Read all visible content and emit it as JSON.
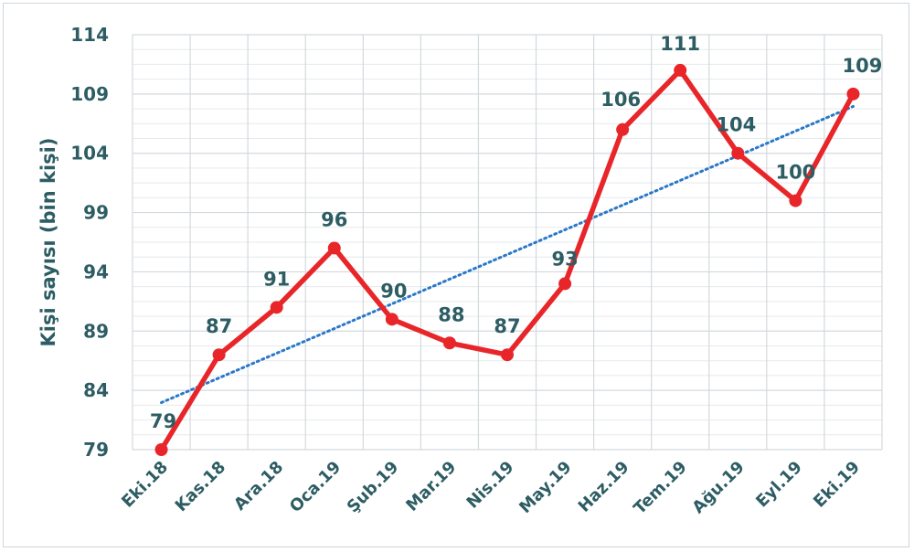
{
  "chart_data": {
    "type": "line",
    "title": "",
    "xlabel": "",
    "ylabel": "Kişi sayısı (bin kişi)",
    "categories": [
      "Eki.18",
      "Kas.18",
      "Ara.18",
      "Oca.19",
      "Şub.19",
      "Mar.19",
      "Nis.19",
      "May.19",
      "Haz.19",
      "Tem.19",
      "Ağu.19",
      "Eyl.19",
      "Eki.19"
    ],
    "series": [
      {
        "values": [
          79,
          87,
          91,
          96,
          90,
          88,
          87,
          93,
          106,
          111,
          104,
          100,
          109
        ]
      }
    ],
    "data_labels": [
      "79",
      "87",
      "91",
      "96",
      "90",
      "88",
      "87",
      "93",
      "106",
      "111",
      "104",
      "100",
      "109"
    ],
    "trendline": {
      "type": "linear",
      "style": "dotted"
    },
    "ylim": [
      79,
      114
    ],
    "yticks": [
      79,
      84,
      89,
      94,
      99,
      104,
      109,
      114
    ],
    "grid": true,
    "colors": {
      "series": "#e8262a",
      "trend": "#2a78c8",
      "text": "#2d5d63",
      "grid": "#d4d9dd"
    }
  }
}
